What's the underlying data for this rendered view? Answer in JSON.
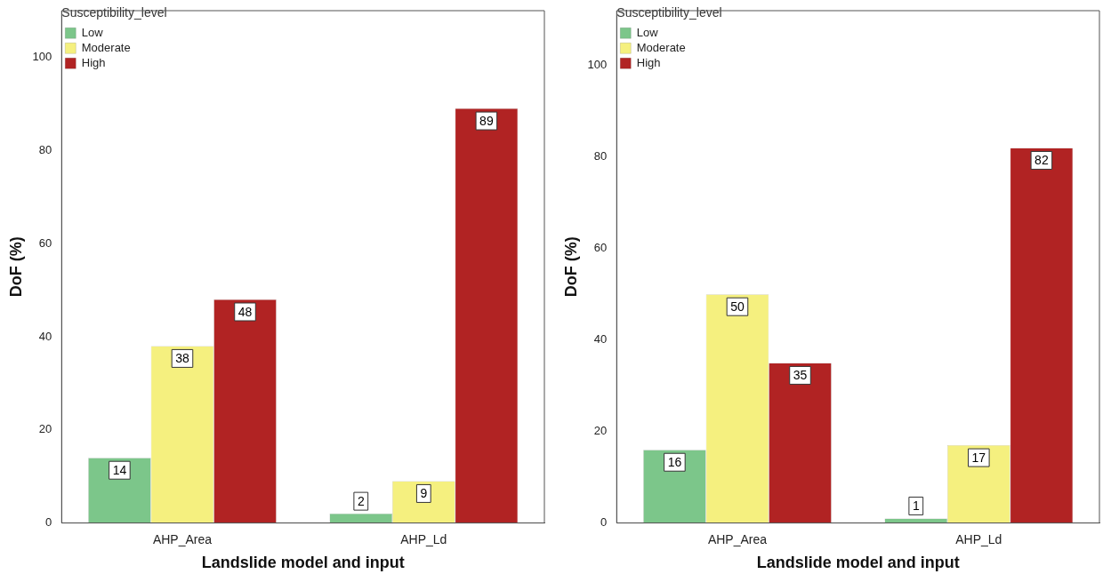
{
  "chart_data": [
    {
      "type": "bar",
      "xlabel": "Landslide model and input",
      "ylabel": "DoF (%)",
      "legend_title": "Susceptibility_level",
      "categories": [
        "AHP_Area",
        "AHP_Ld"
      ],
      "series": [
        {
          "name": "Low",
          "color": "#7cc68a",
          "values": [
            14,
            2
          ]
        },
        {
          "name": "Moderate",
          "color": "#f5f07f",
          "values": [
            38,
            9
          ]
        },
        {
          "name": "High",
          "color": "#b12323",
          "values": [
            48,
            89
          ]
        }
      ],
      "ylim": [
        0,
        110
      ],
      "yticks": [
        0,
        20,
        40,
        60,
        80,
        100
      ],
      "grid": false,
      "legend": "top left",
      "data_labels": true
    },
    {
      "type": "bar",
      "xlabel": "Landslide model and input",
      "ylabel": "DoF (%)",
      "legend_title": "Susceptibility_level",
      "categories": [
        "AHP_Area",
        "AHP_Ld"
      ],
      "series": [
        {
          "name": "Low",
          "color": "#7cc68a",
          "values": [
            16,
            1
          ]
        },
        {
          "name": "Moderate",
          "color": "#f5f07f",
          "values": [
            50,
            17
          ]
        },
        {
          "name": "High",
          "color": "#b12323",
          "values": [
            35,
            82
          ]
        }
      ],
      "ylim": [
        0,
        112
      ],
      "yticks": [
        0,
        20,
        40,
        60,
        80,
        100
      ],
      "grid": false,
      "legend": "top left",
      "data_labels": true
    }
  ]
}
